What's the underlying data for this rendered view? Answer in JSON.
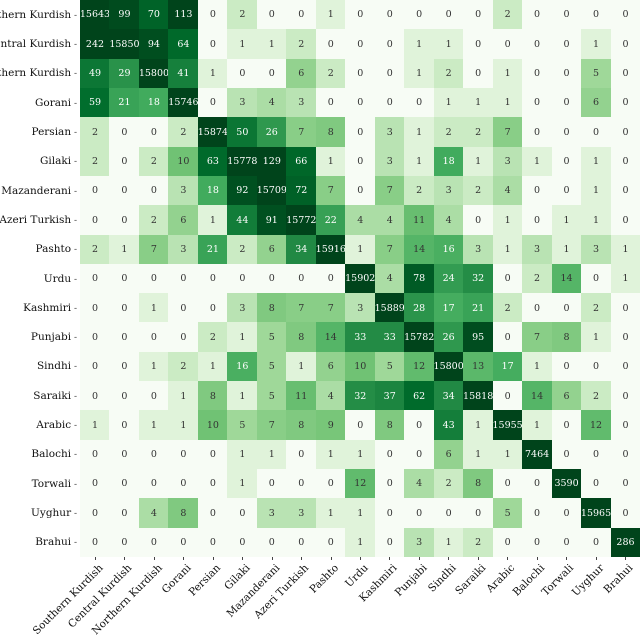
{
  "chart_data": {
    "type": "heatmap",
    "title": "",
    "xlabel": "",
    "ylabel": "",
    "colormap": "Greens (log scale)",
    "color_low": "#f7fcf5",
    "color_high": "#00441b",
    "annotated": true,
    "grid": false,
    "labels": [
      "Southern Kurdish",
      "Central Kurdish",
      "Northern Kurdish",
      "Gorani",
      "Persian",
      "Gilaki",
      "Mazanderani",
      "Azeri Turkish",
      "Pashto",
      "Urdu",
      "Kashmiri",
      "Punjabi",
      "Sindhi",
      "Saraiki",
      "Arabic",
      "Balochi",
      "Torwali",
      "Uyghur",
      "Brahui"
    ],
    "matrix": [
      [
        15643,
        99,
        70,
        113,
        0,
        2,
        0,
        0,
        1,
        0,
        0,
        0,
        0,
        0,
        2,
        0,
        0,
        0,
        0
      ],
      [
        242,
        15850,
        94,
        64,
        0,
        1,
        1,
        2,
        0,
        0,
        0,
        1,
        1,
        0,
        0,
        0,
        0,
        1,
        0
      ],
      [
        49,
        29,
        15800,
        41,
        1,
        0,
        0,
        6,
        2,
        0,
        0,
        1,
        2,
        0,
        1,
        0,
        0,
        5,
        0
      ],
      [
        59,
        21,
        18,
        15746,
        0,
        3,
        4,
        3,
        0,
        0,
        0,
        0,
        1,
        1,
        1,
        0,
        0,
        6,
        0
      ],
      [
        2,
        0,
        0,
        2,
        15874,
        50,
        26,
        7,
        8,
        0,
        3,
        1,
        2,
        2,
        7,
        0,
        0,
        0,
        0
      ],
      [
        2,
        0,
        2,
        10,
        63,
        15778,
        129,
        66,
        1,
        0,
        3,
        1,
        18,
        1,
        3,
        1,
        0,
        1,
        0
      ],
      [
        0,
        0,
        0,
        3,
        18,
        92,
        15709,
        72,
        7,
        0,
        7,
        2,
        3,
        2,
        4,
        0,
        0,
        1,
        0
      ],
      [
        0,
        0,
        2,
        6,
        1,
        44,
        91,
        15772,
        22,
        4,
        4,
        11,
        4,
        0,
        1,
        0,
        1,
        1,
        0
      ],
      [
        2,
        1,
        7,
        3,
        21,
        2,
        6,
        34,
        15916,
        1,
        7,
        14,
        16,
        3,
        1,
        3,
        1,
        3,
        1
      ],
      [
        0,
        0,
        0,
        0,
        0,
        0,
        0,
        0,
        0,
        15902,
        4,
        78,
        24,
        32,
        0,
        2,
        14,
        0,
        1
      ],
      [
        0,
        0,
        1,
        0,
        0,
        3,
        8,
        7,
        7,
        3,
        15889,
        28,
        17,
        21,
        2,
        0,
        0,
        2,
        0
      ],
      [
        0,
        0,
        0,
        0,
        2,
        1,
        5,
        8,
        14,
        33,
        33,
        15782,
        26,
        95,
        0,
        7,
        8,
        1,
        0
      ],
      [
        0,
        0,
        1,
        2,
        1,
        16,
        5,
        1,
        6,
        10,
        5,
        12,
        15800,
        13,
        17,
        1,
        0,
        0,
        0
      ],
      [
        0,
        0,
        0,
        1,
        8,
        1,
        5,
        11,
        4,
        32,
        37,
        62,
        34,
        15818,
        0,
        14,
        6,
        2,
        0
      ],
      [
        1,
        0,
        1,
        1,
        10,
        5,
        7,
        8,
        9,
        0,
        8,
        0,
        43,
        1,
        15955,
        1,
        0,
        12,
        0
      ],
      [
        0,
        0,
        0,
        0,
        0,
        1,
        1,
        0,
        1,
        1,
        0,
        0,
        6,
        1,
        1,
        7464,
        0,
        0,
        0
      ],
      [
        0,
        0,
        0,
        0,
        0,
        1,
        0,
        0,
        0,
        12,
        0,
        4,
        2,
        8,
        0,
        0,
        3590,
        0,
        0
      ],
      [
        0,
        0,
        4,
        8,
        0,
        0,
        3,
        3,
        1,
        1,
        0,
        0,
        0,
        0,
        5,
        0,
        0,
        15965,
        0
      ],
      [
        0,
        0,
        0,
        0,
        0,
        0,
        0,
        0,
        0,
        1,
        0,
        3,
        1,
        2,
        0,
        0,
        0,
        0,
        286
      ]
    ]
  }
}
